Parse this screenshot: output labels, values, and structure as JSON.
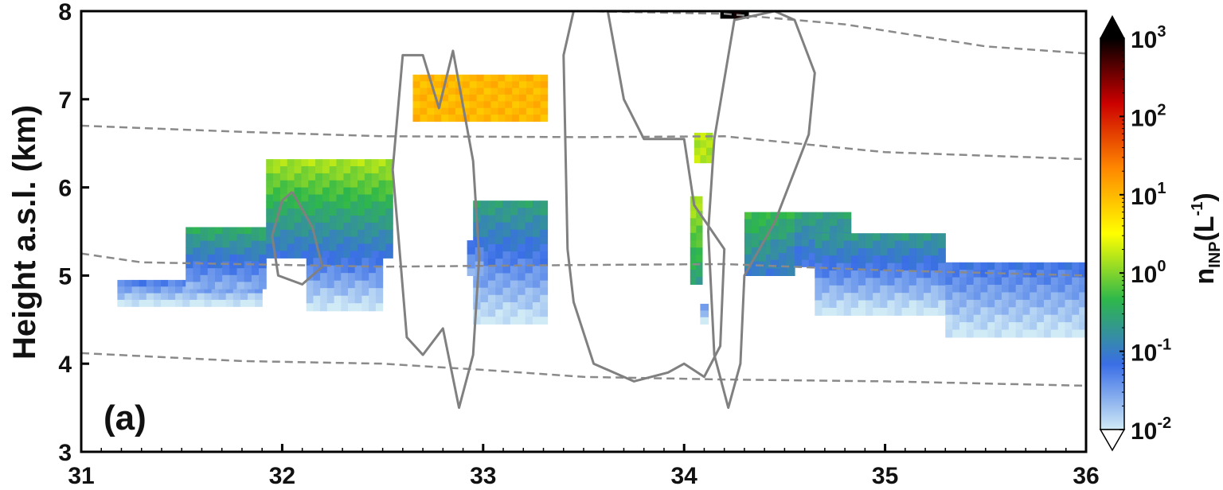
{
  "chart_data": {
    "type": "heatmap",
    "panel_label": "(a)",
    "ylabel": "Height a.s.l. (km)",
    "xlabel": "",
    "xlim": [
      31,
      36
    ],
    "ylim": [
      3,
      8
    ],
    "x_ticks": [
      "31",
      "32",
      "33",
      "34",
      "35",
      "36"
    ],
    "y_ticks": [
      "3",
      "4",
      "5",
      "6",
      "7",
      "8"
    ],
    "colorbar": {
      "label": "n_INP(L^-1)",
      "scale": "log",
      "range": [
        0.01,
        1000
      ],
      "ticks": [
        {
          "base": "10",
          "exp": "-2",
          "value": 0.01
        },
        {
          "base": "10",
          "exp": "-1",
          "value": 0.1
        },
        {
          "base": "10",
          "exp": "0",
          "value": 1
        },
        {
          "base": "10",
          "exp": "1",
          "value": 10
        },
        {
          "base": "10",
          "exp": "2",
          "value": 100
        },
        {
          "base": "10",
          "exp": "3",
          "value": 1000
        }
      ],
      "colors": [
        "#d0eaf6",
        "#3a6ee6",
        "#2eb84a",
        "#ffff00",
        "#ff8800",
        "#cc0000",
        "#000000"
      ]
    },
    "inp_regions": [
      {
        "x0": 31.18,
        "x1": 31.9,
        "ybot": 4.65,
        "ytop": 4.95,
        "top_log": -1.3,
        "bot_log": -2
      },
      {
        "x0": 31.52,
        "x1": 31.92,
        "ybot": 4.85,
        "ytop": 5.55,
        "top_log": -0.5,
        "bot_log": -1.6
      },
      {
        "x0": 31.92,
        "x1": 32.55,
        "ybot": 5.2,
        "ytop": 6.32,
        "top_log": 0.15,
        "bot_log": -1.1
      },
      {
        "x0": 32.12,
        "x1": 32.5,
        "ybot": 4.6,
        "ytop": 5.2,
        "top_log": -1.2,
        "bot_log": -2
      },
      {
        "x0": 32.65,
        "x1": 33.32,
        "ybot": 6.75,
        "ytop": 7.28,
        "top_log": 1.0,
        "bot_log": 1.0
      },
      {
        "x0": 32.95,
        "x1": 33.32,
        "ybot": 4.45,
        "ytop": 5.85,
        "top_log": -0.6,
        "bot_log": -2
      },
      {
        "x0": 32.92,
        "x1": 33.0,
        "ybot": 5.0,
        "ytop": 5.4,
        "top_log": -1.2,
        "bot_log": -1.6
      },
      {
        "x0": 34.03,
        "x1": 34.09,
        "ybot": 4.9,
        "ytop": 5.9,
        "top_log": 0.2,
        "bot_log": -0.6
      },
      {
        "x0": 34.05,
        "x1": 34.14,
        "ybot": 6.28,
        "ytop": 6.62,
        "top_log": 0.2,
        "bot_log": 0.2
      },
      {
        "x0": 34.08,
        "x1": 34.12,
        "ybot": 4.45,
        "ytop": 4.68,
        "top_log": -1.4,
        "bot_log": -2
      },
      {
        "x0": 34.3,
        "x1": 34.55,
        "ybot": 5.0,
        "ytop": 5.72,
        "top_log": -0.3,
        "bot_log": -1.0
      },
      {
        "x0": 34.43,
        "x1": 34.55,
        "ybot": 5.1,
        "ytop": 5.72,
        "top_log": -0.4,
        "bot_log": -1.0
      },
      {
        "x0": 34.55,
        "x1": 34.83,
        "ybot": 5.1,
        "ytop": 5.72,
        "top_log": -0.6,
        "bot_log": -1.2
      },
      {
        "x0": 34.65,
        "x1": 35.3,
        "ybot": 4.55,
        "ytop": 5.48,
        "top_log": -0.7,
        "bot_log": -2
      },
      {
        "x0": 35.3,
        "x1": 36.0,
        "ybot": 4.3,
        "ytop": 5.15,
        "top_log": -1.2,
        "bot_log": -2
      },
      {
        "x0": 34.18,
        "x1": 34.32,
        "ybot": 7.92,
        "ytop": 8.0,
        "top_log": 3.0,
        "bot_log": 3.0
      }
    ],
    "isotherms_km": [
      [
        [
          31,
          6.7
        ],
        [
          31.8,
          6.63
        ],
        [
          32.5,
          6.58
        ],
        [
          33.5,
          6.57
        ],
        [
          34.2,
          6.58
        ],
        [
          35.0,
          6.4
        ],
        [
          36.0,
          6.32
        ]
      ],
      [
        [
          31,
          5.25
        ],
        [
          31.3,
          5.15
        ],
        [
          32.5,
          5.1
        ],
        [
          33.5,
          5.12
        ],
        [
          34.2,
          5.13
        ],
        [
          35.0,
          5.06
        ],
        [
          36.0,
          5.0
        ]
      ],
      [
        [
          31,
          4.12
        ],
        [
          31.8,
          4.03
        ],
        [
          32.5,
          4.0
        ],
        [
          33.0,
          3.93
        ],
        [
          33.5,
          3.85
        ],
        [
          34.2,
          3.82
        ],
        [
          35.0,
          3.8
        ],
        [
          36.0,
          3.75
        ]
      ],
      [
        [
          33.5,
          8.0
        ],
        [
          34.2,
          7.97
        ],
        [
          34.8,
          7.85
        ],
        [
          35.5,
          7.6
        ],
        [
          36.0,
          7.52
        ]
      ]
    ],
    "cloud_contours_km": [
      [
        [
          32.05,
          5.95
        ],
        [
          32.15,
          5.55
        ],
        [
          32.2,
          5.1
        ],
        [
          32.1,
          4.9
        ],
        [
          31.98,
          5.0
        ],
        [
          31.95,
          5.45
        ],
        [
          32.0,
          5.85
        ],
        [
          32.05,
          5.95
        ]
      ],
      [
        [
          32.55,
          6.2
        ],
        [
          32.6,
          7.5
        ],
        [
          32.7,
          7.5
        ],
        [
          32.78,
          6.9
        ],
        [
          32.85,
          7.55
        ],
        [
          32.95,
          6.3
        ],
        [
          32.98,
          5.2
        ],
        [
          32.95,
          4.1
        ],
        [
          32.88,
          3.5
        ],
        [
          32.8,
          4.4
        ],
        [
          32.7,
          4.1
        ],
        [
          32.62,
          4.3
        ],
        [
          32.58,
          5.4
        ],
        [
          32.55,
          6.2
        ]
      ],
      [
        [
          33.42,
          5.3
        ],
        [
          33.4,
          7.5
        ],
        [
          33.45,
          8.0
        ],
        [
          33.62,
          8.0
        ],
        [
          33.7,
          7.0
        ],
        [
          33.8,
          6.55
        ],
        [
          34.0,
          6.55
        ],
        [
          34.05,
          5.8
        ],
        [
          34.2,
          5.3
        ],
        [
          34.18,
          4.2
        ],
        [
          34.1,
          3.85
        ],
        [
          34.0,
          4.0
        ],
        [
          33.92,
          3.9
        ],
        [
          33.75,
          3.8
        ],
        [
          33.55,
          4.0
        ],
        [
          33.45,
          4.7
        ],
        [
          33.42,
          5.3
        ]
      ],
      [
        [
          34.15,
          6.55
        ],
        [
          34.25,
          7.9
        ],
        [
          34.45,
          8.0
        ],
        [
          34.55,
          7.9
        ],
        [
          34.65,
          7.3
        ],
        [
          34.62,
          6.6
        ],
        [
          34.45,
          5.6
        ],
        [
          34.3,
          5.0
        ],
        [
          34.28,
          4.0
        ],
        [
          34.22,
          3.5
        ],
        [
          34.15,
          4.1
        ],
        [
          34.12,
          5.5
        ],
        [
          34.15,
          6.55
        ]
      ]
    ]
  }
}
